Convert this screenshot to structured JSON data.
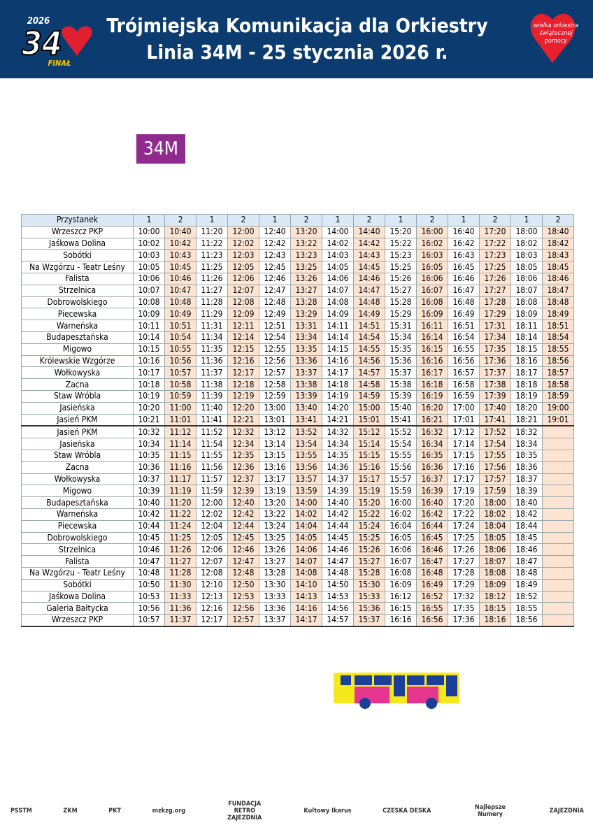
{
  "header": {
    "title_line1": "Trójmiejska Komunikacja dla Orkiestry",
    "title_line2": "Linia 34M - 25 stycznia 2026 r.",
    "logo_left": {
      "year": "2026",
      "number": "34",
      "final": "FINAŁ"
    },
    "logo_right": "wielka orkiestra świątecznej pomocy"
  },
  "badge": "34M",
  "table": {
    "columns": [
      "Przystanek",
      "1",
      "2",
      "1",
      "2",
      "1",
      "2",
      "1",
      "2",
      "1",
      "2",
      "1",
      "2",
      "1",
      "2"
    ],
    "rows": [
      [
        "Wrzeszcz PKP",
        "10:00",
        "10:40",
        "11:20",
        "12:00",
        "12:40",
        "13:20",
        "14:00",
        "14:40",
        "15:20",
        "16:00",
        "16:40",
        "17:20",
        "18:00",
        "18:40"
      ],
      [
        "Jaśkowa Dolina",
        "10:02",
        "10:42",
        "11:22",
        "12:02",
        "12:42",
        "13:22",
        "14:02",
        "14:42",
        "15:22",
        "16:02",
        "16:42",
        "17:22",
        "18:02",
        "18:42"
      ],
      [
        "Sobótki",
        "10:03",
        "10:43",
        "11:23",
        "12:03",
        "12:43",
        "13:23",
        "14:03",
        "14:43",
        "15:23",
        "16:03",
        "16:43",
        "17:23",
        "18:03",
        "18:43"
      ],
      [
        "Na Wzgórzu - Teatr Leśny",
        "10:05",
        "10:45",
        "11:25",
        "12:05",
        "12:45",
        "13:25",
        "14:05",
        "14:45",
        "15:25",
        "16:05",
        "16:45",
        "17:25",
        "18:05",
        "18:45"
      ],
      [
        "Falista",
        "10:06",
        "10:46",
        "11:26",
        "12:06",
        "12:46",
        "13:26",
        "14:06",
        "14:46",
        "15:26",
        "16:06",
        "16:46",
        "17:26",
        "18:06",
        "18:46"
      ],
      [
        "Strzelnica",
        "10:07",
        "10:47",
        "11:27",
        "12:07",
        "12:47",
        "13:27",
        "14:07",
        "14:47",
        "15:27",
        "16:07",
        "16:47",
        "17:27",
        "18:07",
        "18:47"
      ],
      [
        "Dobrowolskiego",
        "10:08",
        "10:48",
        "11:28",
        "12:08",
        "12:48",
        "13:28",
        "14:08",
        "14:48",
        "15:28",
        "16:08",
        "16:48",
        "17:28",
        "18:08",
        "18:48"
      ],
      [
        "Piecewska",
        "10:09",
        "10:49",
        "11:29",
        "12:09",
        "12:49",
        "13:29",
        "14:09",
        "14:49",
        "15:29",
        "16:09",
        "16:49",
        "17:29",
        "18:09",
        "18:49"
      ],
      [
        "Warneńska",
        "10:11",
        "10:51",
        "11:31",
        "12:11",
        "12:51",
        "13:31",
        "14:11",
        "14:51",
        "15:31",
        "16:11",
        "16:51",
        "17:31",
        "18:11",
        "18:51"
      ],
      [
        "Budapesztańska",
        "10:14",
        "10:54",
        "11:34",
        "12:14",
        "12:54",
        "13:34",
        "14:14",
        "14:54",
        "15:34",
        "16:14",
        "16:54",
        "17:34",
        "18:14",
        "18:54"
      ],
      [
        "Migowo",
        "10:15",
        "10:55",
        "11:35",
        "12:15",
        "12:55",
        "13:35",
        "14:15",
        "14:55",
        "15:35",
        "16:15",
        "16:55",
        "17:35",
        "18:15",
        "18:55"
      ],
      [
        "Królewskie Wzgórze",
        "10:16",
        "10:56",
        "11:36",
        "12:16",
        "12:56",
        "13:36",
        "14:16",
        "14:56",
        "15:36",
        "16:16",
        "16:56",
        "17:36",
        "18:16",
        "18:56"
      ],
      [
        "Wołkowyska",
        "10:17",
        "10:57",
        "11:37",
        "12:17",
        "12:57",
        "13:37",
        "14:17",
        "14:57",
        "15:37",
        "16:17",
        "16:57",
        "17:37",
        "18:17",
        "18:57"
      ],
      [
        "Zacna",
        "10:18",
        "10:58",
        "11:38",
        "12:18",
        "12:58",
        "13:38",
        "14:18",
        "14:58",
        "15:38",
        "16:18",
        "16:58",
        "17:38",
        "18:18",
        "18:58"
      ],
      [
        "Staw Wróbla",
        "10:19",
        "10:59",
        "11:39",
        "12:19",
        "12:59",
        "13:39",
        "14:19",
        "14:59",
        "15:39",
        "16:19",
        "16:59",
        "17:39",
        "18:19",
        "18:59"
      ],
      [
        "Jasieńska",
        "10:20",
        "11:00",
        "11:40",
        "12:20",
        "13:00",
        "13:40",
        "14:20",
        "15:00",
        "15:40",
        "16:20",
        "17:00",
        "17:40",
        "18:20",
        "19:00"
      ],
      [
        "Jasień PKM",
        "10:21",
        "11:01",
        "11:41",
        "12:21",
        "13:01",
        "13:41",
        "14:21",
        "15:01",
        "15:41",
        "16:21",
        "17:01",
        "17:41",
        "18:21",
        "19:01"
      ],
      [
        "Jasień PKM",
        "10:32",
        "11:12",
        "11:52",
        "12:32",
        "13:12",
        "13:52",
        "14:32",
        "15:12",
        "15:52",
        "16:32",
        "17:12",
        "17:52",
        "18:32"
      ],
      [
        "Jasieńska",
        "10:34",
        "11:14",
        "11:54",
        "12:34",
        "13:14",
        "13:54",
        "14:34",
        "15:14",
        "15:54",
        "16:34",
        "17:14",
        "17:54",
        "18:34"
      ],
      [
        "Staw Wróbla",
        "10:35",
        "11:15",
        "11:55",
        "12:35",
        "13:15",
        "13:55",
        "14:35",
        "15:15",
        "15:55",
        "16:35",
        "17:15",
        "17:55",
        "18:35"
      ],
      [
        "Zacna",
        "10:36",
        "11:16",
        "11:56",
        "12:36",
        "13:16",
        "13:56",
        "14:36",
        "15:16",
        "15:56",
        "16:36",
        "17:16",
        "17:56",
        "18:36"
      ],
      [
        "Wołkowyska",
        "10:37",
        "11:17",
        "11:57",
        "12:37",
        "13:17",
        "13:57",
        "14:37",
        "15:17",
        "15:57",
        "16:37",
        "17:17",
        "17:57",
        "18:37"
      ],
      [
        "Migowo",
        "10:39",
        "11:19",
        "11:59",
        "12:39",
        "13:19",
        "13:59",
        "14:39",
        "15:19",
        "15:59",
        "16:39",
        "17:19",
        "17:59",
        "18:39"
      ],
      [
        "Budapesztańska",
        "10:40",
        "11:20",
        "12:00",
        "12:40",
        "13:20",
        "14:00",
        "14:40",
        "15:20",
        "16:00",
        "16:40",
        "17:20",
        "18:00",
        "18:40"
      ],
      [
        "Warneńska",
        "10:42",
        "11:22",
        "12:02",
        "12:42",
        "13:22",
        "14:02",
        "14:42",
        "15:22",
        "16:02",
        "16:42",
        "17:22",
        "18:02",
        "18:42"
      ],
      [
        "Piecewska",
        "10:44",
        "11:24",
        "12:04",
        "12:44",
        "13:24",
        "14:04",
        "14:44",
        "15:24",
        "16:04",
        "16:44",
        "17:24",
        "18:04",
        "18:44"
      ],
      [
        "Dobrowolskiego",
        "10:45",
        "11:25",
        "12:05",
        "12:45",
        "13:25",
        "14:05",
        "14:45",
        "15:25",
        "16:05",
        "16:45",
        "17:25",
        "18:05",
        "18:45"
      ],
      [
        "Strzelnica",
        "10:46",
        "11:26",
        "12:06",
        "12:46",
        "13:26",
        "14:06",
        "14:46",
        "15:26",
        "16:06",
        "16:46",
        "17:26",
        "18:06",
        "18:46"
      ],
      [
        "Falista",
        "10:47",
        "11:27",
        "12:07",
        "12:47",
        "13:27",
        "14:07",
        "14:47",
        "15:27",
        "16:07",
        "16:47",
        "17:27",
        "18:07",
        "18:47"
      ],
      [
        "Na Wzgórzu - Teatr Leśny",
        "10:48",
        "11:28",
        "12:08",
        "12:48",
        "13:28",
        "14:08",
        "14:48",
        "15:28",
        "16:08",
        "16:48",
        "17:28",
        "18:08",
        "18:48"
      ],
      [
        "Sobótki",
        "10:50",
        "11:30",
        "12:10",
        "12:50",
        "13:30",
        "14:10",
        "14:50",
        "15:30",
        "16:09",
        "16:49",
        "17:29",
        "18:09",
        "18:49"
      ],
      [
        "Jaśkowa Dolina",
        "10:53",
        "11:33",
        "12:13",
        "12:53",
        "13:33",
        "14:13",
        "14:53",
        "15:33",
        "16:12",
        "16:52",
        "17:32",
        "18:12",
        "18:52"
      ],
      [
        "Galeria Bałtycka",
        "10:56",
        "11:36",
        "12:16",
        "12:56",
        "13:36",
        "14:16",
        "14:56",
        "15:36",
        "16:15",
        "16:55",
        "17:35",
        "18:15",
        "18:55"
      ],
      [
        "Wrzeszcz PKP",
        "10:57",
        "11:37",
        "12:17",
        "12:57",
        "13:37",
        "14:17",
        "14:57",
        "15:37",
        "16:16",
        "16:56",
        "17:36",
        "18:16",
        "18:56"
      ]
    ],
    "section_break": 17
  },
  "sponsors": [
    "PSSTM",
    "ZKM",
    "PKT",
    "mzkzg.org",
    "FUNDACJA RETRO ZAJEZDNIA",
    "Kultowy Ikarus",
    "CZESKA DESKA",
    "Najlepsze Numery",
    "ZAJEZDNIA"
  ]
}
